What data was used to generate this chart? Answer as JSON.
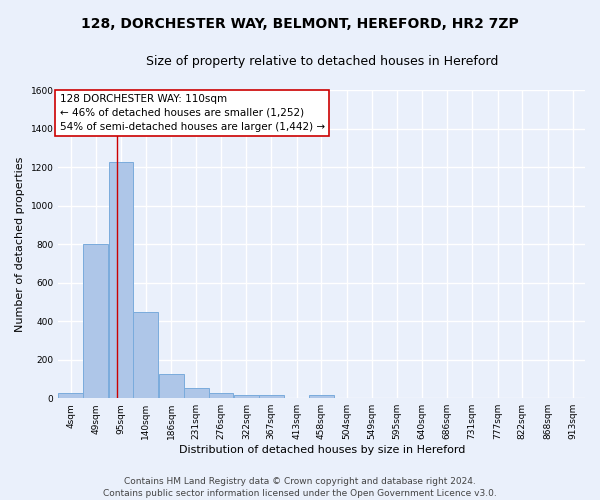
{
  "title1": "128, DORCHESTER WAY, BELMONT, HEREFORD, HR2 7ZP",
  "title2": "Size of property relative to detached houses in Hereford",
  "xlabel": "Distribution of detached houses by size in Hereford",
  "ylabel": "Number of detached properties",
  "bin_edges": [
    4,
    49,
    95,
    140,
    186,
    231,
    276,
    322,
    367,
    413,
    458,
    504,
    549,
    595,
    640,
    686,
    731,
    777,
    822,
    868,
    913
  ],
  "bar_heights": [
    25,
    800,
    1225,
    450,
    125,
    55,
    25,
    15,
    15,
    0,
    15,
    0,
    0,
    0,
    0,
    0,
    0,
    0,
    0,
    0
  ],
  "bar_color": "#aec6e8",
  "bar_edge_color": "#7aabdc",
  "background_color": "#eaf0fb",
  "grid_color": "#ffffff",
  "red_line_x": 110,
  "annotation_text": "128 DORCHESTER WAY: 110sqm\n← 46% of detached houses are smaller (1,252)\n54% of semi-detached houses are larger (1,442) →",
  "annotation_box_color": "#ffffff",
  "annotation_box_edge": "#cc0000",
  "ylim": [
    0,
    1600
  ],
  "yticks": [
    0,
    200,
    400,
    600,
    800,
    1000,
    1200,
    1400,
    1600
  ],
  "footer_text": "Contains HM Land Registry data © Crown copyright and database right 2024.\nContains public sector information licensed under the Open Government Licence v3.0.",
  "title1_fontsize": 10,
  "title2_fontsize": 9,
  "annotation_fontsize": 7.5,
  "footer_fontsize": 6.5,
  "tick_fontsize": 6.5,
  "ylabel_fontsize": 8,
  "xlabel_fontsize": 8
}
